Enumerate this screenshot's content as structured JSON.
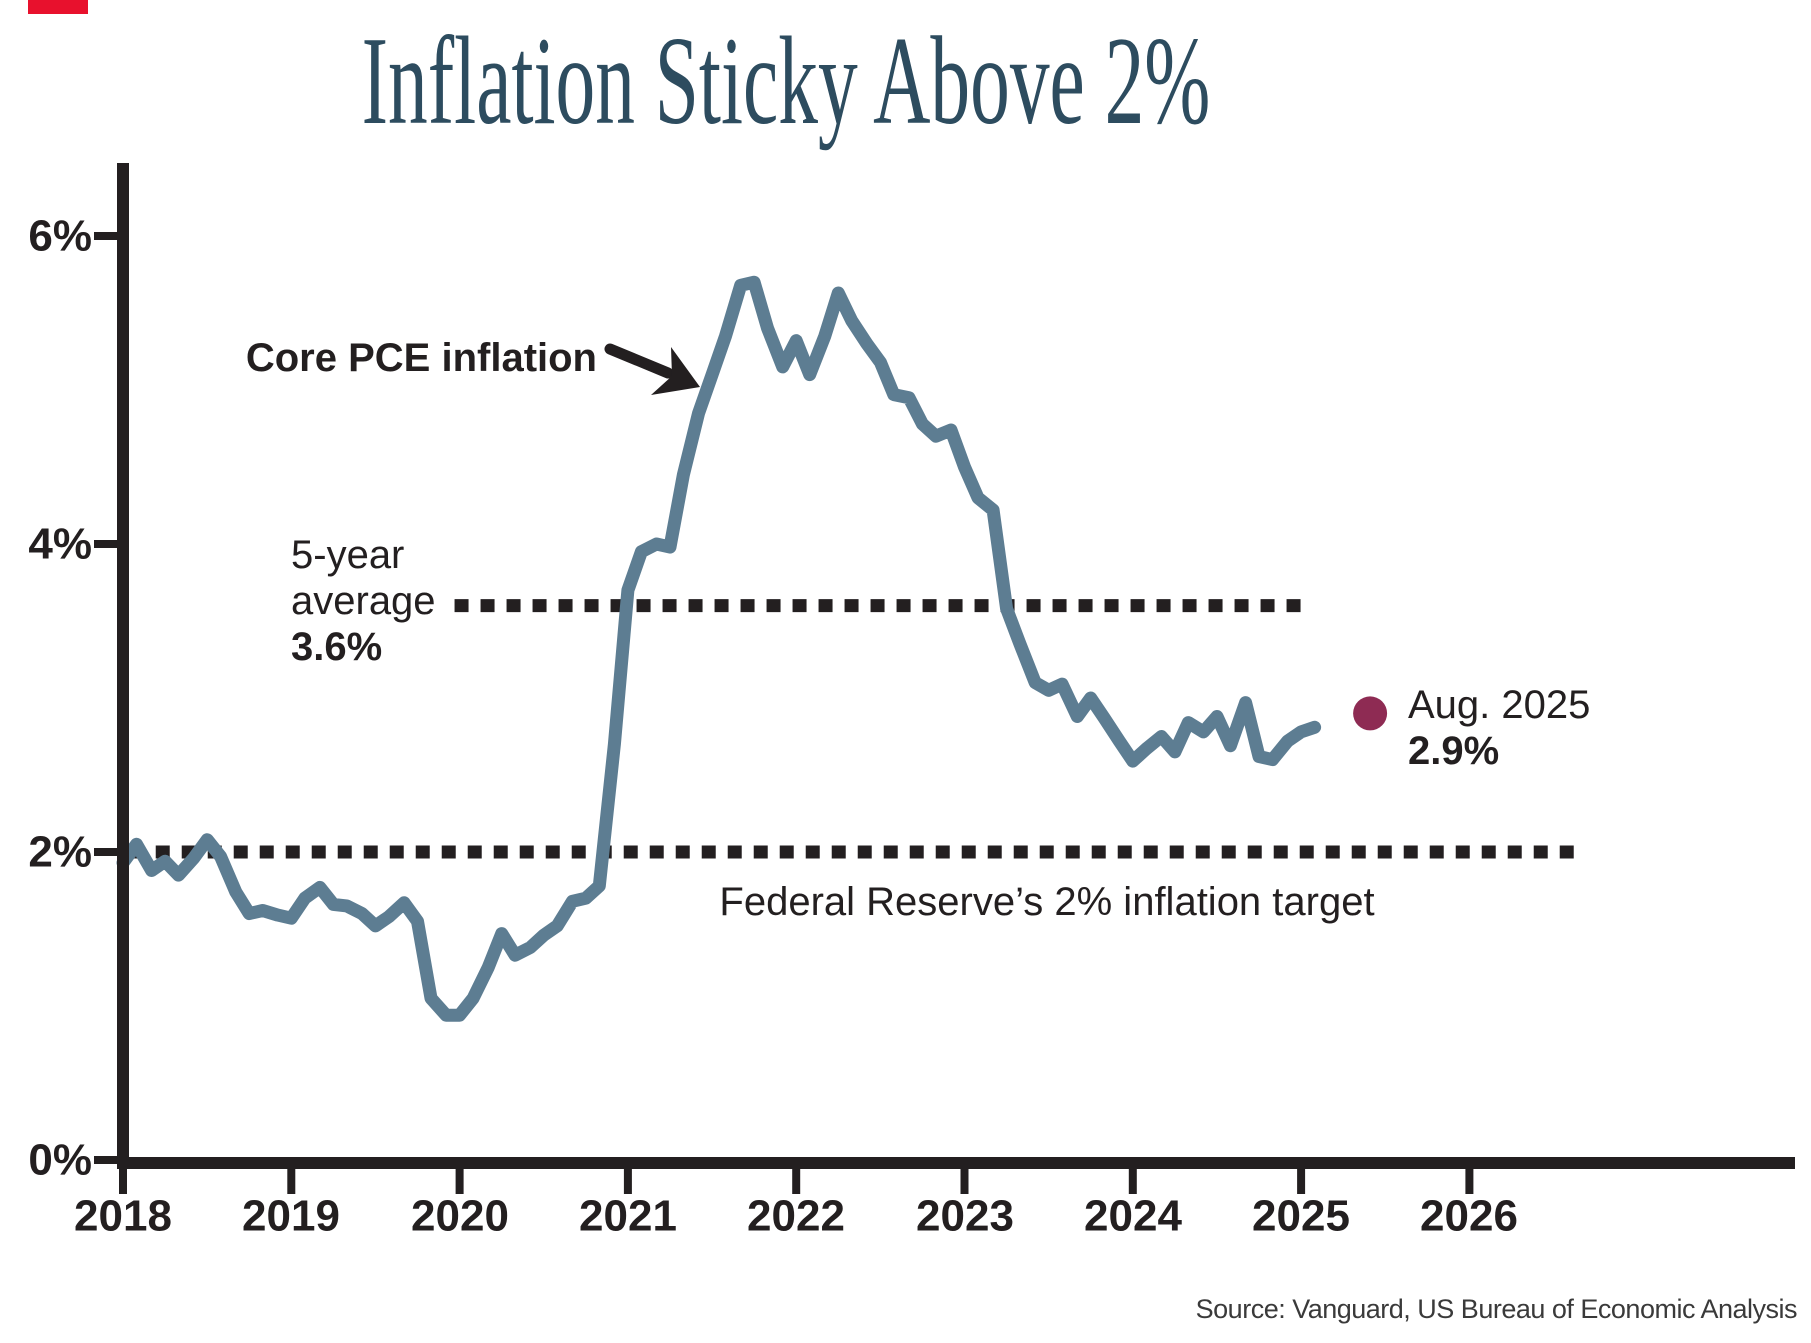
{
  "title": "Inflation Sticky Above 2%",
  "source": "Source: Vanguard, US Bureau of Economic Analysis",
  "annotations": {
    "core_pce_label": "Core PCE inflation",
    "five_year_avg_line1": "5-year",
    "five_year_avg_line2": "average",
    "five_year_avg_value": "3.6%",
    "latest_point_label": "Aug. 2025",
    "latest_point_value": "2.9%",
    "fed_target_label": "Federal Reserve’s 2% inflation target"
  },
  "colors": {
    "ink": "#231f20",
    "line": "#5d7d92",
    "dot": "#8e2b53",
    "title": "#2d4c5f",
    "source_text": "#3a3a3a",
    "progress_bar": "#e8112d"
  },
  "chart_data": {
    "type": "line",
    "title": "Inflation Sticky Above 2%",
    "grid": false,
    "legend_position": "none",
    "x_axis": {
      "ticks": [
        "2018",
        "2019",
        "2020",
        "2021",
        "2022",
        "2023",
        "2024",
        "2025",
        "2026"
      ],
      "range": [
        2018,
        2026.95
      ]
    },
    "y_axis": {
      "ticks": [
        "0%",
        "2%",
        "4%",
        "6%"
      ],
      "tick_values": [
        0,
        2,
        4,
        6
      ],
      "range": [
        0,
        6.5
      ],
      "unit": "percent YoY"
    },
    "series": [
      {
        "name": "Core PCE inflation",
        "points": [
          [
            2018.0,
            1.93
          ],
          [
            2018.08,
            2.05
          ],
          [
            2018.17,
            1.88
          ],
          [
            2018.25,
            1.94
          ],
          [
            2018.33,
            1.85
          ],
          [
            2018.42,
            1.96
          ],
          [
            2018.5,
            2.08
          ],
          [
            2018.58,
            1.97
          ],
          [
            2018.67,
            1.74
          ],
          [
            2018.75,
            1.6
          ],
          [
            2018.83,
            1.62
          ],
          [
            2018.92,
            1.59
          ],
          [
            2019.0,
            1.57
          ],
          [
            2019.08,
            1.7
          ],
          [
            2019.17,
            1.77
          ],
          [
            2019.25,
            1.66
          ],
          [
            2019.33,
            1.65
          ],
          [
            2019.42,
            1.6
          ],
          [
            2019.5,
            1.52
          ],
          [
            2019.58,
            1.58
          ],
          [
            2019.67,
            1.67
          ],
          [
            2019.75,
            1.55
          ],
          [
            2019.83,
            1.05
          ],
          [
            2019.92,
            0.94
          ],
          [
            2020.0,
            0.94
          ],
          [
            2020.08,
            1.05
          ],
          [
            2020.17,
            1.25
          ],
          [
            2020.25,
            1.47
          ],
          [
            2020.33,
            1.33
          ],
          [
            2020.42,
            1.38
          ],
          [
            2020.5,
            1.46
          ],
          [
            2020.58,
            1.52
          ],
          [
            2020.67,
            1.68
          ],
          [
            2020.75,
            1.7
          ],
          [
            2020.83,
            1.78
          ],
          [
            2020.92,
            2.7
          ],
          [
            2021.0,
            3.7
          ],
          [
            2021.08,
            3.95
          ],
          [
            2021.17,
            4.0
          ],
          [
            2021.25,
            3.98
          ],
          [
            2021.33,
            4.45
          ],
          [
            2021.42,
            4.85
          ],
          [
            2021.5,
            5.1
          ],
          [
            2021.58,
            5.35
          ],
          [
            2021.67,
            5.68
          ],
          [
            2021.75,
            5.7
          ],
          [
            2021.83,
            5.4
          ],
          [
            2021.92,
            5.15
          ],
          [
            2022.0,
            5.32
          ],
          [
            2022.08,
            5.1
          ],
          [
            2022.17,
            5.35
          ],
          [
            2022.25,
            5.63
          ],
          [
            2022.33,
            5.45
          ],
          [
            2022.42,
            5.3
          ],
          [
            2022.5,
            5.18
          ],
          [
            2022.58,
            4.97
          ],
          [
            2022.67,
            4.95
          ],
          [
            2022.75,
            4.78
          ],
          [
            2022.83,
            4.7
          ],
          [
            2022.92,
            4.74
          ],
          [
            2023.0,
            4.5
          ],
          [
            2023.08,
            4.3
          ],
          [
            2023.17,
            4.22
          ],
          [
            2023.25,
            3.58
          ],
          [
            2023.33,
            3.35
          ],
          [
            2023.42,
            3.1
          ],
          [
            2023.5,
            3.05
          ],
          [
            2023.58,
            3.09
          ],
          [
            2023.67,
            2.88
          ],
          [
            2023.75,
            3.0
          ],
          [
            2023.83,
            2.87
          ],
          [
            2023.92,
            2.72
          ],
          [
            2024.0,
            2.59
          ],
          [
            2024.08,
            2.67
          ],
          [
            2024.17,
            2.75
          ],
          [
            2024.25,
            2.65
          ],
          [
            2024.33,
            2.84
          ],
          [
            2024.42,
            2.78
          ],
          [
            2024.5,
            2.88
          ],
          [
            2024.58,
            2.69
          ],
          [
            2024.67,
            2.97
          ],
          [
            2024.75,
            2.62
          ],
          [
            2024.83,
            2.6
          ],
          [
            2024.92,
            2.72
          ],
          [
            2025.0,
            2.78
          ],
          [
            2025.08,
            2.81
          ]
        ]
      }
    ],
    "reference_lines": [
      {
        "label": "5-year average",
        "value": 3.6,
        "x_start": 2019.97,
        "x_end": 2025.03,
        "style": "dotted"
      },
      {
        "label": "Federal Reserve's 2% inflation target",
        "value": 2.0,
        "x_start": 2018.04,
        "x_end": 2026.67,
        "style": "dotted"
      }
    ],
    "highlight_point": {
      "label": "Aug. 2025",
      "value": 2.9,
      "x": 2025.41
    }
  }
}
